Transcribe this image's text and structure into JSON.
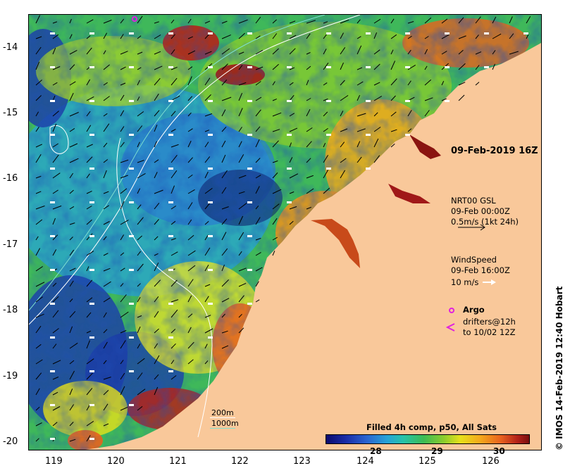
{
  "map": {
    "lat_labels": [
      "-14",
      "-15",
      "-16",
      "-17",
      "-18",
      "-19",
      "-20"
    ],
    "lon_labels": [
      "119",
      "120",
      "121",
      "122",
      "123",
      "124",
      "125",
      "126"
    ],
    "datetime": "09-Feb-2019 16Z",
    "credit": "© IMOS 14-Feb-2019 12:40 Hobart"
  },
  "legend": {
    "currents_line1": "NRT00 GSL",
    "currents_line2": "09-Feb 00:00Z",
    "currents_line3": "0.5m/s (1kt 24h)",
    "wind_line1": "WindSpeed",
    "wind_line2": "09-Feb 16:00Z",
    "wind_line3": "10 m/s",
    "argo": "Argo",
    "drifters_line1": "drifters@12h",
    "drifters_line2": "to 10/02 12Z",
    "isobath_200": "200m",
    "isobath_1000": "1000m"
  },
  "colorbar": {
    "title": "Filled 4h comp, p50, All Sats",
    "ticks": [
      "28",
      "29",
      "30"
    ]
  },
  "colors": {
    "land": "#f9c89a",
    "argo": "#e020e0",
    "drifter": "#e020e0",
    "isobath_200": "#ffffff",
    "isobath_1000": "#7fe0d0"
  }
}
